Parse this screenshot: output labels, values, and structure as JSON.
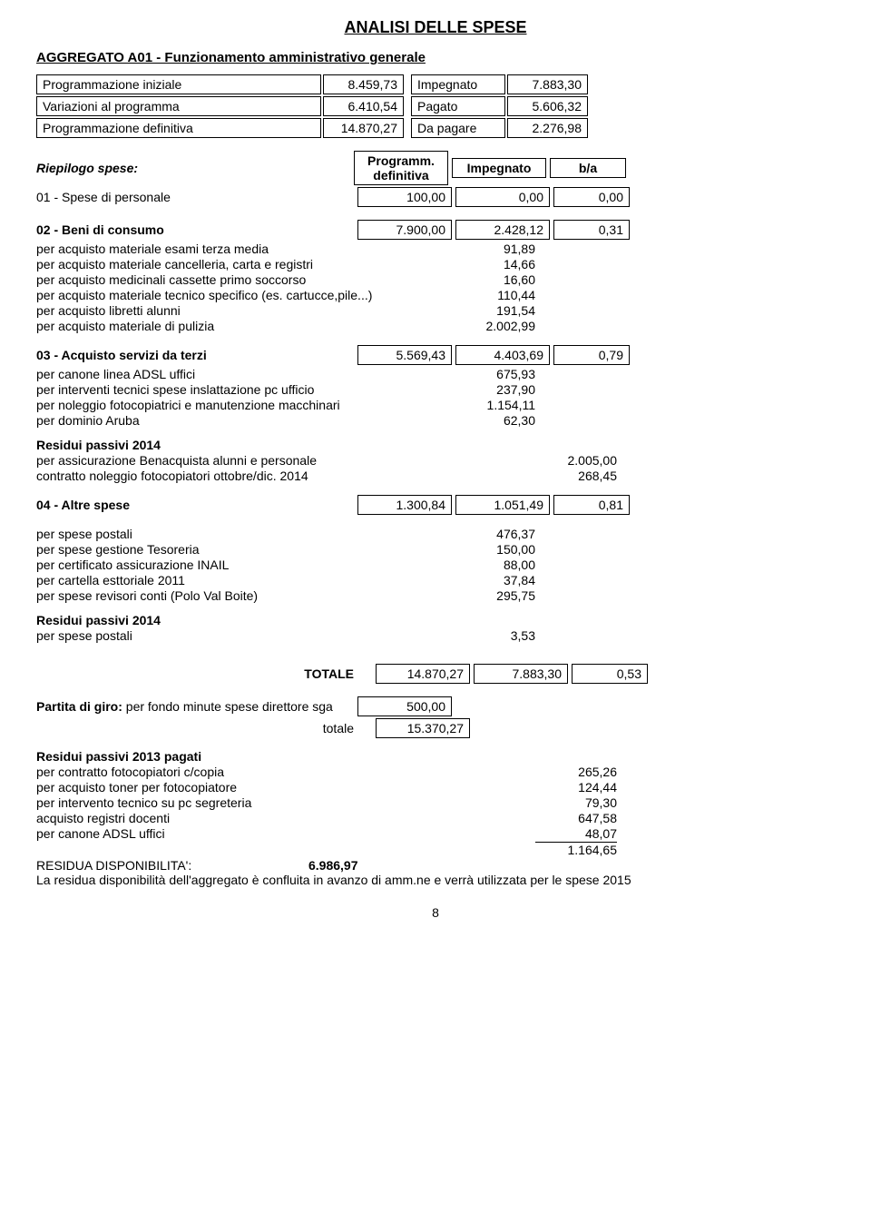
{
  "title": "ANALISI DELLE SPESE",
  "sectionTitle": "AGGREGATO A01 - Funzionamento amministrativo generale",
  "prog": {
    "rows": [
      {
        "label": "Programmazione iniziale",
        "v1": "8.459,73",
        "label2": "Impegnato",
        "v2": "7.883,30"
      },
      {
        "label": "Variazioni al programma",
        "v1": "6.410,54",
        "label2": "Pagato",
        "v2": "5.606,32"
      },
      {
        "label": "Programmazione definitiva",
        "v1": "14.870,27",
        "label2": "Da pagare",
        "v2": "2.276,98"
      }
    ]
  },
  "riepilogo": {
    "label": "Riepilogo spese:",
    "h1": "Programm. definitiva",
    "h2": "Impegnato",
    "h3": "b/a",
    "r01": {
      "label": "01 - Spese di personale",
      "c1": "100,00",
      "c2": "0,00",
      "c3": "0,00"
    }
  },
  "r02": {
    "label": "02 - Beni di consumo",
    "c1": "7.900,00",
    "c2": "2.428,12",
    "c3": "0,31",
    "items": [
      {
        "k": "per acquisto materiale esami terza media",
        "v": "91,89"
      },
      {
        "k": "per acquisto materiale cancelleria, carta e registri",
        "v": "14,66"
      },
      {
        "k": "per acquisto medicinali cassette primo soccorso",
        "v": "16,60"
      },
      {
        "k": "per acquisto materiale tecnico specifico (es. cartucce,pile...)",
        "v": "110,44"
      },
      {
        "k": "per acquisto libretti alunni",
        "v": "191,54"
      },
      {
        "k": "per acquisto materiale di pulizia",
        "v": "2.002,99"
      }
    ]
  },
  "r03": {
    "label": "03 - Acquisto servizi da terzi",
    "c1": "5.569,43",
    "c2": "4.403,69",
    "c3": "0,79",
    "items": [
      {
        "k": "per canone linea ADSL uffici",
        "v": "675,93"
      },
      {
        "k": "per interventi tecnici spese inslattazione pc ufficio",
        "v": "237,90"
      },
      {
        "k": "per noleggio fotocopiatrici e manutenzione macchinari",
        "v": "1.154,11"
      },
      {
        "k": "per dominio Aruba",
        "v": "62,30"
      }
    ]
  },
  "residui03": {
    "title": "Residui passivi 2014",
    "items": [
      {
        "k": "per assicurazione Benacquista alunni e personale",
        "v": "2.005,00"
      },
      {
        "k": "contratto noleggio fotocopiatori ottobre/dic. 2014",
        "v": "268,45"
      }
    ]
  },
  "r04": {
    "label": "04 - Altre spese",
    "c1": "1.300,84",
    "c2": "1.051,49",
    "c3": "0,81",
    "items": [
      {
        "k": "per spese postali",
        "v": "476,37"
      },
      {
        "k": "per spese gestione Tesoreria",
        "v": "150,00"
      },
      {
        "k": "per certificato assicurazione INAIL",
        "v": "88,00"
      },
      {
        "k": "per cartella esttoriale 2011",
        "v": "37,84"
      },
      {
        "k": "per spese revisori conti (Polo Val Boite)",
        "v": "295,75"
      }
    ]
  },
  "residui04": {
    "title": "Residui passivi 2014",
    "items": [
      {
        "k": "per spese postali",
        "v": "3,53"
      }
    ]
  },
  "totale": {
    "label": "TOTALE",
    "c1": "14.870,27",
    "c2": "7.883,30",
    "c3": "0,53"
  },
  "partita": {
    "label": "Partita di giro:",
    "text": " per fondo minute spese direttore sga",
    "v": "500,00",
    "totalLabel": "totale",
    "totalV": "15.370,27"
  },
  "residui2013": {
    "title": "Residui passivi 2013 pagati",
    "items": [
      {
        "k": "per contratto fotocopiatori c/copia",
        "v": "265,26"
      },
      {
        "k": "per acquisto toner per fotocopiatore",
        "v": "124,44"
      },
      {
        "k": "per intervento tecnico su pc segreteria",
        "v": "79,30"
      },
      {
        "k": "acquisto registri docenti",
        "v": "647,58"
      },
      {
        "k": "per canone ADSL uffici",
        "v": "48,07"
      }
    ],
    "sum": "1.164,65"
  },
  "residua": {
    "label": "RESIDUA DISPONIBILITA':",
    "v": "6.986,97"
  },
  "footnote": "La residua disponibilità dell'aggregato è confluita in avanzo di amm.ne e verrà utilizzata per le spese 2015",
  "pageNum": "8",
  "colors": {
    "text": "#000000",
    "bg": "#ffffff",
    "border": "#000000"
  },
  "typography": {
    "baseFontSize": 14,
    "titleFontSize": 18,
    "fontFamily": "Arial"
  }
}
